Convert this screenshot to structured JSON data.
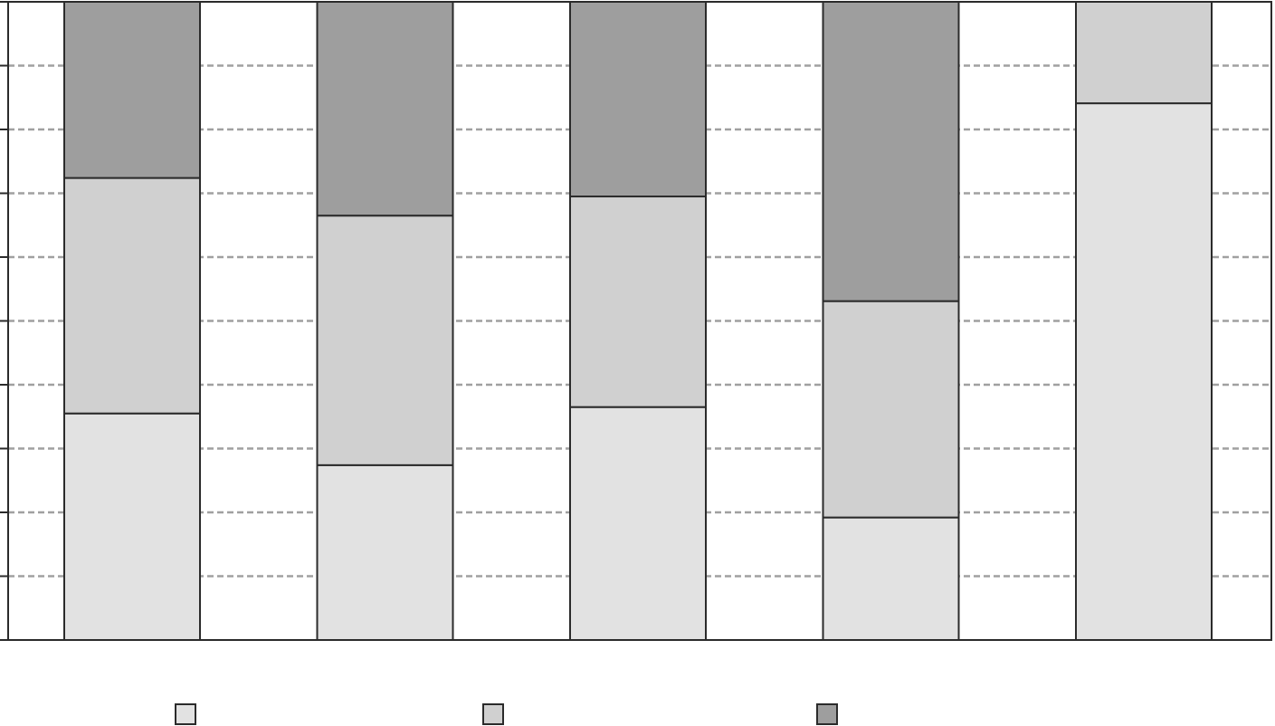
{
  "chart_data": {
    "type": "bar",
    "stacked": true,
    "normalized": true,
    "ylim": [
      0,
      100
    ],
    "y_gridlines": [
      10,
      20,
      30,
      40,
      50,
      60,
      70,
      80,
      90
    ],
    "grid": true,
    "categories": [
      "",
      "",
      "",
      "",
      ""
    ],
    "series": [
      {
        "values": [
          35.5,
          27.4,
          36.5,
          19.2,
          84.1
        ],
        "color": "#e2e2e2"
      },
      {
        "values": [
          36.9,
          39.1,
          33.0,
          33.9,
          15.9
        ],
        "color": "#d0d0d0"
      },
      {
        "values": [
          27.6,
          33.5,
          30.5,
          46.9,
          0
        ],
        "color": "#9e9e9e"
      }
    ],
    "legend": {
      "placement": "bottom",
      "entries": [
        "",
        "",
        ""
      ]
    }
  }
}
